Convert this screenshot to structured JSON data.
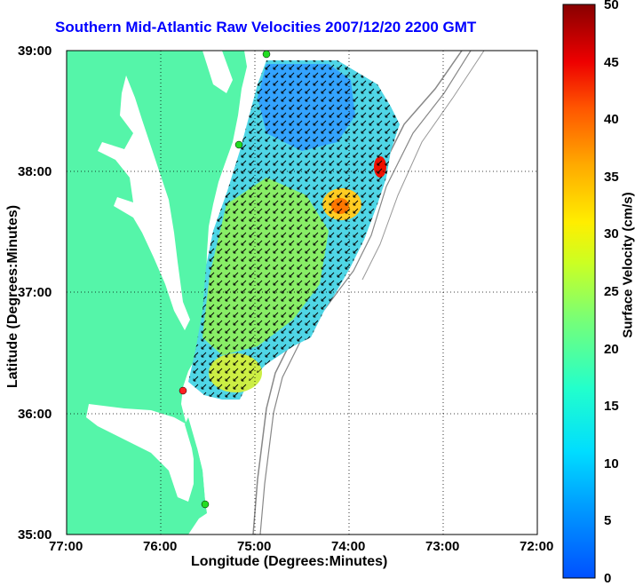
{
  "title": "Southern Mid-Atlantic Raw Velocities 2007/12/20 2200 GMT",
  "axes": {
    "xlabel": "Longitude (Degrees:Minutes)",
    "ylabel": "Latitude (Degrees:Minutes)",
    "x_ticks": [
      "77:00",
      "76:00",
      "75:00",
      "74:00",
      "73:00",
      "72:00"
    ],
    "y_ticks": [
      "39:00",
      "38:00",
      "37:00",
      "36:00",
      "35:00"
    ]
  },
  "colorbar": {
    "label": "Surface Velocity (cm/s)",
    "ticks": [
      "50",
      "45",
      "40",
      "35",
      "30",
      "25",
      "20",
      "15",
      "10",
      "5",
      "0"
    ],
    "min": 0,
    "max": 50
  },
  "colors": {
    "land": "#55f5a9",
    "water": "#ffffff",
    "title": "#0000ff",
    "bathymetry": "#888888"
  },
  "stations": [
    {
      "color": "green"
    },
    {
      "color": "green"
    },
    {
      "color": "red"
    },
    {
      "color": "green"
    }
  ]
}
